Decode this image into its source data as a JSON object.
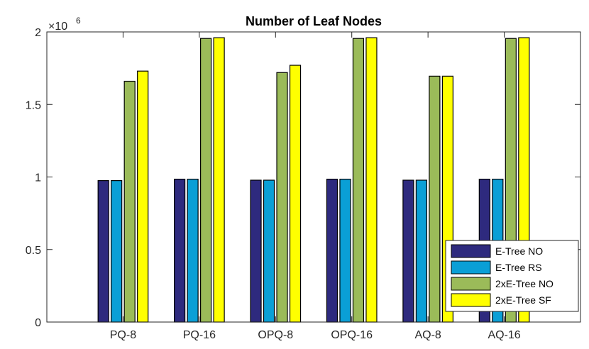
{
  "chart_data": {
    "type": "bar",
    "title": "Number of Leaf Nodes",
    "xlabel": "",
    "ylabel": "",
    "categories": [
      "PQ-8",
      "PQ-16",
      "OPQ-8",
      "OPQ-16",
      "AQ-8",
      "AQ-16"
    ],
    "series": [
      {
        "name": "E-Tree NO",
        "color": "#2e2a7e",
        "values": [
          975000,
          985000,
          978000,
          985000,
          978000,
          985000
        ]
      },
      {
        "name": "E-Tree RS",
        "color": "#0a9fd6",
        "values": [
          975000,
          985000,
          978000,
          985000,
          978000,
          985000
        ]
      },
      {
        "name": "2xE-Tree NO",
        "color": "#9bbb59",
        "values": [
          1660000,
          1955000,
          1720000,
          1955000,
          1695000,
          1955000
        ]
      },
      {
        "name": "2xE-Tree SF",
        "color": "#ffff00",
        "values": [
          1730000,
          1960000,
          1770000,
          1960000,
          1695000,
          1960000
        ]
      }
    ],
    "ylim": [
      0,
      2000000
    ],
    "yticks": [
      0,
      500000,
      1000000,
      1500000,
      2000000
    ],
    "ytick_labels": [
      "0",
      "0.5",
      "1",
      "1.5",
      "2"
    ],
    "y_exponent_base": "×10",
    "y_exponent_power": "6",
    "legend_position": "bottom-right",
    "grid": false
  }
}
